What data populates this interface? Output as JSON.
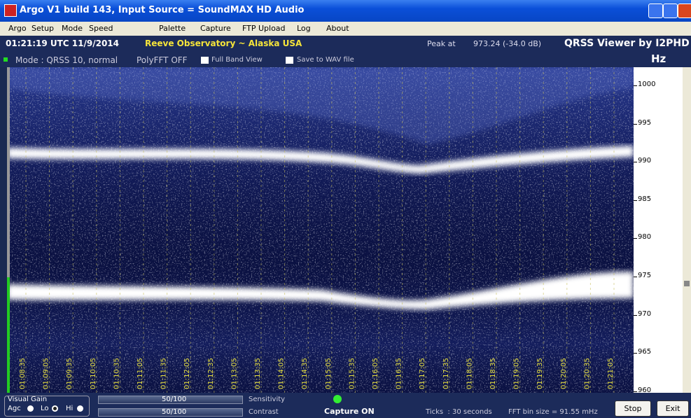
{
  "window": {
    "title": "Argo V1 build 143, Input Source = SoundMAX HD Audio"
  },
  "menu": [
    "Argo",
    "Setup",
    "Mode",
    "Speed",
    "Palette",
    "Capture",
    "FTP Upload",
    "Log",
    "About"
  ],
  "status": {
    "time": "01:21:19 UTC 11/9/2014",
    "location": "Reeve Observatory ~ Alaska USA",
    "peak_label": "Peak at",
    "peak_value": "973.24 (-34.0 dB)",
    "brand": "QRSS Viewer by I2PHD"
  },
  "options": {
    "mode": "Mode : QRSS 10, normal",
    "polyfft": "PolyFFT OFF",
    "full_band": "Full Band View",
    "save_wav": "Save to WAV file",
    "unit": "Hz"
  },
  "freq_labels": [
    "1000",
    "995",
    "990",
    "985",
    "980",
    "975",
    "970",
    "965",
    "960"
  ],
  "time_labels": [
    "01:08:35",
    "01:09:05",
    "01:09:35",
    "01:10:05",
    "01:10:35",
    "01:11:05",
    "01:11:35",
    "01:12:05",
    "01:12:35",
    "01:13:05",
    "01:13:35",
    "01:14:05",
    "01:14:35",
    "01:15:05",
    "01:15:35",
    "01:16:05",
    "01:16:35",
    "01:17:05",
    "01:17:35",
    "01:18:05",
    "01:18:35",
    "01:19:05",
    "01:19:35",
    "01:20:05",
    "01:20:35",
    "01:21:05"
  ],
  "controls": {
    "visual_gain": "Visual Gain",
    "agc": "Agc",
    "lo": "Lo",
    "hi": "Hi",
    "sensitivity_value": "50/100",
    "sensitivity": "Sensitivity",
    "contrast_value": "50/100",
    "contrast": "Contrast",
    "capture": "Capture ON",
    "ticks": "Ticks  : 30 seconds",
    "fft": "FFT bin size = 91.55 mHz",
    "stop": "Stop",
    "exit": "Exit"
  }
}
